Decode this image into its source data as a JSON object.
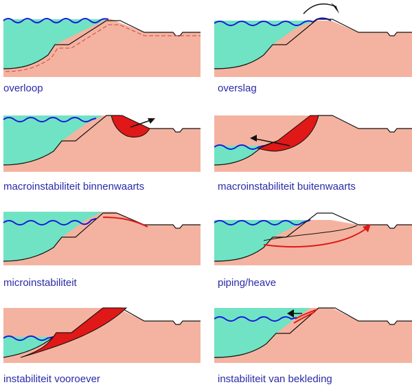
{
  "colors": {
    "soil": "#f4b3a0",
    "water": "#6fe3c4",
    "wave": "#1919d8",
    "outline": "#111111",
    "failure": "#e01818",
    "caption": "#2a2aa8"
  },
  "panels": [
    {
      "id": "overloop",
      "caption": "overloop",
      "icon": "overflow-icon"
    },
    {
      "id": "overslag",
      "caption": "overslag",
      "icon": "wave-overtopping-icon"
    },
    {
      "id": "macro-binnen",
      "caption": "macroinstabiliteit binnenwaarts",
      "icon": "inner-slope-slip-icon"
    },
    {
      "id": "macro-buiten",
      "caption": "macroinstabiliteit buitenwaarts",
      "icon": "outer-slope-slip-icon"
    },
    {
      "id": "micro",
      "caption": "microinstabiliteit",
      "icon": "micro-instability-icon"
    },
    {
      "id": "piping",
      "caption": "piping/heave",
      "icon": "piping-icon"
    },
    {
      "id": "vooroever",
      "caption": "instabiliteit vooroever",
      "icon": "foreshore-slide-icon"
    },
    {
      "id": "bekleding",
      "caption": "instabiliteit van bekleding",
      "icon": "revetment-failure-icon"
    }
  ]
}
